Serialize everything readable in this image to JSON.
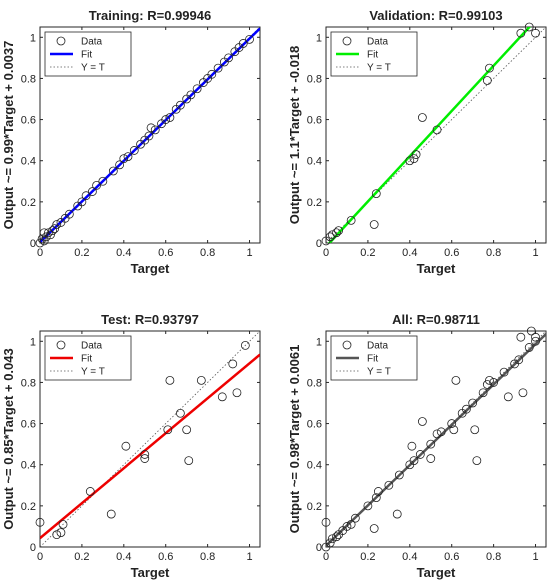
{
  "chart_data": [
    {
      "type": "scatter",
      "title": "Training: R=0.99946",
      "xlabel": "Target",
      "ylabel": "Output ~= 0.99*Target + 0.0037",
      "xlim": [
        0,
        1.05
      ],
      "ylim": [
        0,
        1.05
      ],
      "xticks": [
        "0",
        "0.2",
        "0.4",
        "0.6",
        "0.8",
        "1"
      ],
      "yticks": [
        "0",
        "0.2",
        "0.4",
        "0.6",
        "0.8",
        "1"
      ],
      "grid": false,
      "legend_position": "top-left",
      "legend": [
        "Data",
        "Fit",
        "Y = T"
      ],
      "fit": {
        "slope": 0.99,
        "intercept": 0.0037,
        "color": "#0000ff"
      },
      "series": [
        {
          "name": "Data",
          "x": [
            0.0,
            0.01,
            0.02,
            0.02,
            0.03,
            0.04,
            0.05,
            0.06,
            0.07,
            0.08,
            0.1,
            0.12,
            0.14,
            0.18,
            0.2,
            0.22,
            0.25,
            0.27,
            0.3,
            0.35,
            0.38,
            0.4,
            0.42,
            0.45,
            0.48,
            0.5,
            0.52,
            0.53,
            0.55,
            0.58,
            0.6,
            0.62,
            0.65,
            0.67,
            0.7,
            0.72,
            0.75,
            0.78,
            0.8,
            0.82,
            0.85,
            0.88,
            0.9,
            0.93,
            0.95,
            0.97,
            1.0
          ],
          "y": [
            0.0,
            0.02,
            0.01,
            0.05,
            0.03,
            0.05,
            0.04,
            0.06,
            0.07,
            0.09,
            0.1,
            0.12,
            0.14,
            0.18,
            0.2,
            0.23,
            0.25,
            0.28,
            0.3,
            0.35,
            0.38,
            0.41,
            0.42,
            0.45,
            0.48,
            0.5,
            0.52,
            0.56,
            0.55,
            0.58,
            0.6,
            0.61,
            0.65,
            0.67,
            0.7,
            0.72,
            0.75,
            0.78,
            0.8,
            0.82,
            0.85,
            0.88,
            0.9,
            0.93,
            0.95,
            0.97,
            0.99
          ]
        }
      ]
    },
    {
      "type": "scatter",
      "title": "Validation: R=0.99103",
      "xlabel": "Target",
      "ylabel": "Output ~= 1.1*Target + -0.018",
      "xlim": [
        0,
        1.05
      ],
      "ylim": [
        0,
        1.05
      ],
      "xticks": [
        "0",
        "0.2",
        "0.4",
        "0.6",
        "0.8",
        "1"
      ],
      "yticks": [
        "0",
        "0.2",
        "0.4",
        "0.6",
        "0.8",
        "1"
      ],
      "grid": false,
      "legend_position": "top-left",
      "legend": [
        "Data",
        "Fit",
        "Y = T"
      ],
      "fit": {
        "slope": 1.1,
        "intercept": -0.018,
        "color": "#00ee00"
      },
      "series": [
        {
          "name": "Data",
          "x": [
            0.0,
            0.02,
            0.03,
            0.05,
            0.06,
            0.12,
            0.23,
            0.24,
            0.4,
            0.42,
            0.43,
            0.46,
            0.53,
            0.77,
            0.78,
            0.93,
            0.97,
            1.0
          ],
          "y": [
            0.01,
            0.03,
            0.04,
            0.05,
            0.06,
            0.11,
            0.09,
            0.24,
            0.4,
            0.41,
            0.43,
            0.61,
            0.55,
            0.79,
            0.85,
            1.02,
            1.05,
            1.02
          ]
        }
      ]
    },
    {
      "type": "scatter",
      "title": "Test: R=0.93797",
      "xlabel": "Target",
      "ylabel": "Output ~= 0.85*Target + 0.043",
      "xlim": [
        0,
        1.05
      ],
      "ylim": [
        0,
        1.05
      ],
      "xticks": [
        "0",
        "0.2",
        "0.4",
        "0.6",
        "0.8",
        "1"
      ],
      "yticks": [
        "0",
        "0.2",
        "0.4",
        "0.6",
        "0.8",
        "1"
      ],
      "grid": false,
      "legend_position": "top-left",
      "legend": [
        "Data",
        "Fit",
        "Y = T"
      ],
      "fit": {
        "slope": 0.85,
        "intercept": 0.043,
        "color": "#ee0000"
      },
      "series": [
        {
          "name": "Data",
          "x": [
            0.0,
            0.08,
            0.1,
            0.11,
            0.24,
            0.34,
            0.41,
            0.5,
            0.5,
            0.61,
            0.62,
            0.67,
            0.7,
            0.71,
            0.77,
            0.87,
            0.92,
            0.94,
            0.98
          ],
          "y": [
            0.12,
            0.06,
            0.07,
            0.11,
            0.27,
            0.16,
            0.49,
            0.43,
            0.45,
            0.57,
            0.81,
            0.65,
            0.57,
            0.42,
            0.81,
            0.73,
            0.89,
            0.75,
            0.98
          ]
        }
      ]
    },
    {
      "type": "scatter",
      "title": "All: R=0.98711",
      "xlabel": "Target",
      "ylabel": "Output ~= 0.98*Target + 0.0061",
      "xlim": [
        0,
        1.05
      ],
      "ylim": [
        0,
        1.05
      ],
      "xticks": [
        "0",
        "0.2",
        "0.4",
        "0.6",
        "0.8",
        "1"
      ],
      "yticks": [
        "0",
        "0.2",
        "0.4",
        "0.6",
        "0.8",
        "1"
      ],
      "grid": false,
      "legend_position": "top-left",
      "legend": [
        "Data",
        "Fit",
        "Y = T"
      ],
      "fit": {
        "slope": 0.98,
        "intercept": 0.0061,
        "color": "#555555"
      },
      "series": [
        {
          "name": "Data",
          "x": [
            0.0,
            0.0,
            0.02,
            0.03,
            0.05,
            0.06,
            0.08,
            0.1,
            0.12,
            0.14,
            0.2,
            0.23,
            0.24,
            0.25,
            0.3,
            0.34,
            0.35,
            0.4,
            0.41,
            0.42,
            0.45,
            0.46,
            0.5,
            0.5,
            0.53,
            0.55,
            0.6,
            0.61,
            0.62,
            0.65,
            0.67,
            0.7,
            0.71,
            0.72,
            0.75,
            0.77,
            0.78,
            0.8,
            0.85,
            0.87,
            0.9,
            0.92,
            0.93,
            0.94,
            0.97,
            0.98,
            1.0,
            1.0
          ],
          "y": [
            0.0,
            0.12,
            0.02,
            0.04,
            0.05,
            0.06,
            0.08,
            0.1,
            0.11,
            0.14,
            0.2,
            0.09,
            0.24,
            0.27,
            0.3,
            0.16,
            0.35,
            0.4,
            0.49,
            0.42,
            0.45,
            0.61,
            0.43,
            0.5,
            0.55,
            0.56,
            0.6,
            0.57,
            0.81,
            0.65,
            0.67,
            0.7,
            0.57,
            0.42,
            0.75,
            0.79,
            0.81,
            0.8,
            0.85,
            0.73,
            0.89,
            0.91,
            1.02,
            0.75,
            0.97,
            1.05,
            1.0,
            1.02
          ]
        }
      ]
    }
  ]
}
